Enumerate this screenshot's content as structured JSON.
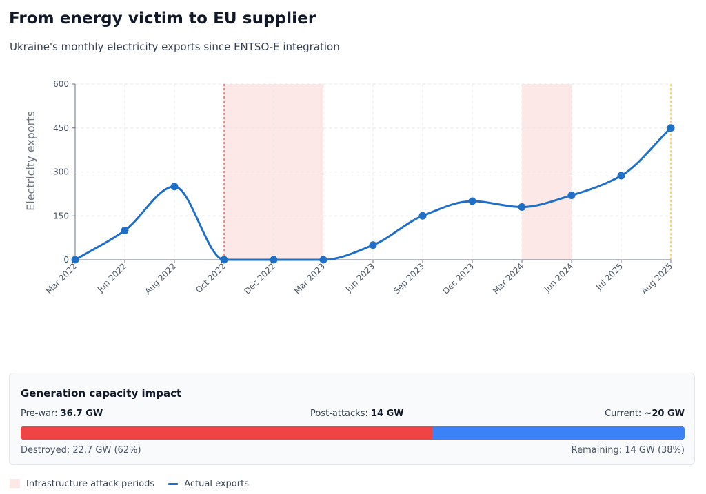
{
  "header": {
    "title": "From energy victim to EU supplier",
    "subtitle": "Ukraine's monthly electricity exports since ENTSO-E integration"
  },
  "chart_data": {
    "type": "line",
    "title": "",
    "ylabel": "Electricity exports",
    "xlabel": "",
    "ylim": [
      0,
      600
    ],
    "yticks": [
      "0",
      "150",
      "300",
      "450",
      "600"
    ],
    "grid": true,
    "categories": [
      "Mar 2022",
      "Jun 2022",
      "Aug 2022",
      "Oct 2022",
      "Dec 2022",
      "Mar 2023",
      "Jun 2023",
      "Sep 2023",
      "Dec 2023",
      "Mar 2024",
      "Jun 2024",
      "Jul 2025",
      "Aug 2025"
    ],
    "series": [
      {
        "name": "Actual exports",
        "color": "#1f6fc6",
        "values": [
          0,
          100,
          250,
          0,
          0,
          0,
          50,
          150,
          200,
          180,
          220,
          287,
          450
        ]
      }
    ],
    "shaded_periods": [
      {
        "from": "Oct 2022",
        "to": "Mar 2023",
        "color": "#fde8e8"
      },
      {
        "from": "Mar 2024",
        "to": "Jun 2024",
        "color": "#fde8e8"
      }
    ],
    "marker_lines": [
      {
        "at": "Oct 2022",
        "color": "#dc2626"
      },
      {
        "at": "Aug 2025",
        "color": "#f59e0b"
      }
    ],
    "legend": {
      "position": "bottom-left",
      "items": [
        "Infrastructure attack periods",
        "Actual exports"
      ]
    }
  },
  "capacity": {
    "title": "Generation capacity impact",
    "pre_war_label": "Pre-war:",
    "pre_war_value": "36.7 GW",
    "post_attacks_label": "Post-attacks:",
    "post_attacks_value": "14 GW",
    "current_label": "Current:",
    "current_value": "~20 GW",
    "destroyed_fraction": 0.62,
    "remaining_fraction": 0.38,
    "destroyed_color": "#ef4444",
    "remaining_color": "#3b82f6",
    "destroyed_note": "Destroyed: 22.7 GW (62%)",
    "remaining_note": "Remaining: 14 GW (38%)"
  }
}
